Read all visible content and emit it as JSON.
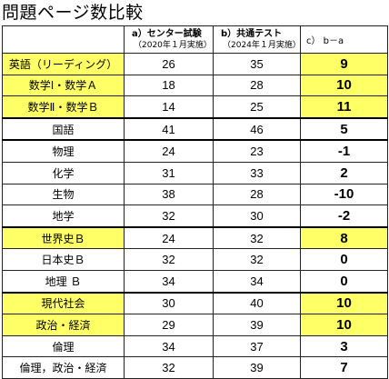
{
  "title": "問題ページ数比較",
  "header": {
    "col_a_main": "a）センター試験",
    "col_a_sub": "（2020年１月実施）",
    "col_b_main": "b）共通テスト",
    "col_b_sub": "（2024年１月実施）",
    "col_c": "c） b－a"
  },
  "colors": {
    "highlight": "#ffff66",
    "border": "#222222"
  },
  "rows": [
    {
      "subject": "英語（リーディング）",
      "a": "26",
      "b": "35",
      "diff": "9",
      "highlight": true
    },
    {
      "subject": "数学Ⅰ・数学Ａ",
      "a": "18",
      "b": "28",
      "diff": "10",
      "highlight": true
    },
    {
      "subject": "数学Ⅱ・数学Ｂ",
      "a": "14",
      "b": "25",
      "diff": "11",
      "highlight": true
    },
    {
      "subject": "国語",
      "a": "41",
      "b": "46",
      "diff": "5",
      "highlight": false
    },
    {
      "subject": "物理",
      "a": "24",
      "b": "23",
      "diff": "-1",
      "highlight": false
    },
    {
      "subject": "化学",
      "a": "31",
      "b": "33",
      "diff": "2",
      "highlight": false
    },
    {
      "subject": "生物",
      "a": "38",
      "b": "28",
      "diff": "-10",
      "highlight": false
    },
    {
      "subject": "地学",
      "a": "32",
      "b": "30",
      "diff": "-2",
      "highlight": false
    },
    {
      "subject": "世界史Ｂ",
      "a": "24",
      "b": "32",
      "diff": "8",
      "highlight": true
    },
    {
      "subject": "日本史Ｂ",
      "a": "32",
      "b": "32",
      "diff": "0",
      "highlight": false
    },
    {
      "subject": "地理 Ｂ",
      "a": "34",
      "b": "34",
      "diff": "0",
      "highlight": false
    },
    {
      "subject": "現代社会",
      "a": "30",
      "b": "40",
      "diff": "10",
      "highlight": true
    },
    {
      "subject": "政治・経済",
      "a": "29",
      "b": "39",
      "diff": "10",
      "highlight": true
    },
    {
      "subject": "倫理",
      "a": "34",
      "b": "37",
      "diff": "3",
      "highlight": false
    },
    {
      "subject": "倫理，政治・経済",
      "a": "32",
      "b": "39",
      "diff": "7",
      "highlight": false
    }
  ]
}
